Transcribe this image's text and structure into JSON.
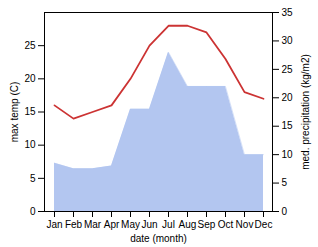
{
  "chart_data": {
    "type": "line",
    "categories": [
      "Jan",
      "Feb",
      "Mar",
      "Apr",
      "May",
      "Jun",
      "Jul",
      "Aug",
      "Sep",
      "Oct",
      "Nov",
      "Dec"
    ],
    "xlabel": "date (month)",
    "ylabel": "max temp (C)",
    "y2label": "med. precipitation (kg/m2)",
    "ylim": [
      0,
      30
    ],
    "yticks": [
      0,
      5,
      10,
      15,
      20,
      25
    ],
    "y2lim": [
      0,
      35
    ],
    "y2ticks": [
      0,
      5,
      10,
      15,
      20,
      25,
      30,
      35
    ],
    "grid": false,
    "series": [
      {
        "type": "line",
        "color": "#cc3333",
        "values": [
          16,
          14,
          15,
          16,
          20,
          25,
          28,
          28,
          27,
          23,
          18,
          17
        ]
      },
      {
        "type": "area",
        "color": "#b3c6f0",
        "axis": "y2",
        "values": [
          8.5,
          7.5,
          7.5,
          8,
          18,
          18,
          28,
          22,
          22,
          22,
          10,
          10
        ]
      }
    ]
  }
}
